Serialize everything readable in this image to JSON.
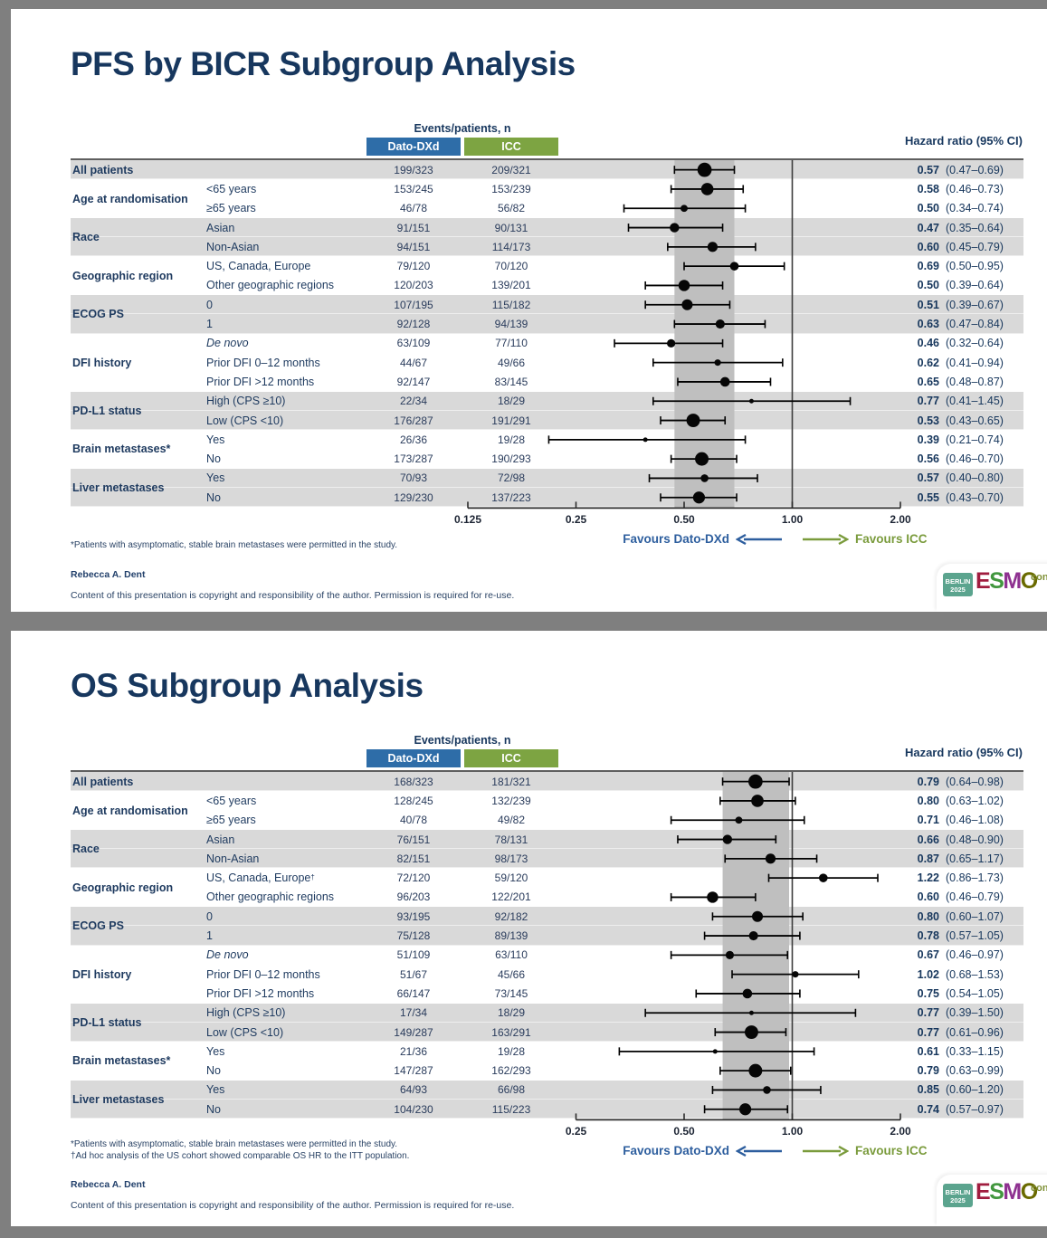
{
  "page": {
    "background_color": "#7f7f7f",
    "logo": {
      "badge": "BERLIN 2025",
      "badge_color": "#5ba48e",
      "brand_letters": [
        "E",
        "S",
        "M",
        "O"
      ],
      "brand_letter_colors": [
        "#a01d3f",
        "#42973f",
        "#8e3190",
        "#6a6a00"
      ],
      "suffix": "congr",
      "suffix_color": "#7d8f33"
    }
  },
  "chart_data": [
    {
      "type": "forest",
      "title": "PFS by BICR Subgroup Analysis",
      "events_header": "Events/patients, n",
      "columns": [
        "Dato-DXd",
        "ICC"
      ],
      "column_colors": [
        "#2e6da8",
        "#7da442"
      ],
      "hr_header": "Hazard ratio (95% CI)",
      "axis_scale": "log2",
      "axis_ticks": [
        "0.125",
        "0.25",
        "0.50",
        "1.00",
        "2.00"
      ],
      "reference_line": 1.0,
      "band": [
        0.47,
        0.69
      ],
      "favours_left": "Favours Dato-DXd",
      "favours_right": "Favours ICC",
      "favours_left_color": "#2d5e9e",
      "favours_right_color": "#7a9b3c",
      "groups": [
        {
          "label": "All patients",
          "shaded": true,
          "rows": [
            {
              "category": "",
              "dato": "199/323",
              "icc": "209/321",
              "hr": 0.57,
              "lo": 0.47,
              "hi": 0.69
            }
          ]
        },
        {
          "label": "Age at randomisation",
          "shaded": false,
          "rows": [
            {
              "category": "<65 years",
              "dato": "153/245",
              "icc": "153/239",
              "hr": 0.58,
              "lo": 0.46,
              "hi": 0.73
            },
            {
              "category": "≥65 years",
              "dato": "46/78",
              "icc": "56/82",
              "hr": 0.5,
              "lo": 0.34,
              "hi": 0.74
            }
          ]
        },
        {
          "label": "Race",
          "shaded": true,
          "rows": [
            {
              "category": "Asian",
              "dato": "91/151",
              "icc": "90/131",
              "hr": 0.47,
              "lo": 0.35,
              "hi": 0.64
            },
            {
              "category": "Non-Asian",
              "dato": "94/151",
              "icc": "114/173",
              "hr": 0.6,
              "lo": 0.45,
              "hi": 0.79
            }
          ]
        },
        {
          "label": "Geographic region",
          "shaded": false,
          "rows": [
            {
              "category": "US, Canada, Europe",
              "dato": "79/120",
              "icc": "70/120",
              "hr": 0.69,
              "lo": 0.5,
              "hi": 0.95
            },
            {
              "category": "Other geographic regions",
              "dato": "120/203",
              "icc": "139/201",
              "hr": 0.5,
              "lo": 0.39,
              "hi": 0.64
            }
          ]
        },
        {
          "label": "ECOG PS",
          "shaded": true,
          "rows": [
            {
              "category": "0",
              "dato": "107/195",
              "icc": "115/182",
              "hr": 0.51,
              "lo": 0.39,
              "hi": 0.67
            },
            {
              "category": "1",
              "dato": "92/128",
              "icc": "94/139",
              "hr": 0.63,
              "lo": 0.47,
              "hi": 0.84
            }
          ]
        },
        {
          "label": "DFI history",
          "shaded": false,
          "rows": [
            {
              "category": "De novo",
              "italic": true,
              "dato": "63/109",
              "icc": "77/110",
              "hr": 0.46,
              "lo": 0.32,
              "hi": 0.64
            },
            {
              "category": "Prior DFI 0–12 months",
              "dato": "44/67",
              "icc": "49/66",
              "hr": 0.62,
              "lo": 0.41,
              "hi": 0.94
            },
            {
              "category": "Prior DFI >12 months",
              "dato": "92/147",
              "icc": "83/145",
              "hr": 0.65,
              "lo": 0.48,
              "hi": 0.87
            }
          ]
        },
        {
          "label": "PD-L1 status",
          "shaded": true,
          "rows": [
            {
              "category": "High (CPS ≥10)",
              "dato": "22/34",
              "icc": "18/29",
              "hr": 0.77,
              "lo": 0.41,
              "hi": 1.45
            },
            {
              "category": "Low (CPS <10)",
              "dato": "176/287",
              "icc": "191/291",
              "hr": 0.53,
              "lo": 0.43,
              "hi": 0.65
            }
          ]
        },
        {
          "label": "Brain metastases*",
          "shaded": false,
          "rows": [
            {
              "category": "Yes",
              "dato": "26/36",
              "icc": "19/28",
              "hr": 0.39,
              "lo": 0.21,
              "hi": 0.74
            },
            {
              "category": "No",
              "dato": "173/287",
              "icc": "190/293",
              "hr": 0.56,
              "lo": 0.46,
              "hi": 0.7
            }
          ]
        },
        {
          "label": "Liver metastases",
          "shaded": true,
          "rows": [
            {
              "category": "Yes",
              "dato": "70/93",
              "icc": "72/98",
              "hr": 0.57,
              "lo": 0.4,
              "hi": 0.8
            },
            {
              "category": "No",
              "dato": "129/230",
              "icc": "137/223",
              "hr": 0.55,
              "lo": 0.43,
              "hi": 0.7
            }
          ]
        }
      ],
      "footnotes": [
        "*Patients with asymptomatic, stable brain metastases were permitted in the study."
      ],
      "author": "Rebecca A. Dent",
      "copyright": "Content of this presentation is copyright and responsibility of the author. Permission is required for re-use."
    },
    {
      "type": "forest",
      "title": "OS Subgroup Analysis",
      "events_header": "Events/patients, n",
      "columns": [
        "Dato-DXd",
        "ICC"
      ],
      "column_colors": [
        "#2e6da8",
        "#7da442"
      ],
      "hr_header": "Hazard ratio (95% CI)",
      "axis_scale": "log2",
      "axis_ticks": [
        "0.25",
        "0.50",
        "1.00",
        "2.00"
      ],
      "reference_line": 1.0,
      "band": [
        0.64,
        0.98
      ],
      "favours_left": "Favours Dato-DXd",
      "favours_right": "Favours ICC",
      "favours_left_color": "#2d5e9e",
      "favours_right_color": "#7a9b3c",
      "groups": [
        {
          "label": "All patients",
          "shaded": true,
          "rows": [
            {
              "category": "",
              "dato": "168/323",
              "icc": "181/321",
              "hr": 0.79,
              "lo": 0.64,
              "hi": 0.98
            }
          ]
        },
        {
          "label": "Age at randomisation",
          "shaded": false,
          "rows": [
            {
              "category": "<65 years",
              "dato": "128/245",
              "icc": "132/239",
              "hr": 0.8,
              "lo": 0.63,
              "hi": 1.02
            },
            {
              "category": "≥65 years",
              "dato": "40/78",
              "icc": "49/82",
              "hr": 0.71,
              "lo": 0.46,
              "hi": 1.08
            }
          ]
        },
        {
          "label": "Race",
          "shaded": true,
          "rows": [
            {
              "category": "Asian",
              "dato": "76/151",
              "icc": "78/131",
              "hr": 0.66,
              "lo": 0.48,
              "hi": 0.9
            },
            {
              "category": "Non-Asian",
              "dato": "82/151",
              "icc": "98/173",
              "hr": 0.87,
              "lo": 0.65,
              "hi": 1.17
            }
          ]
        },
        {
          "label": "Geographic region",
          "shaded": false,
          "rows": [
            {
              "category": "US, Canada, Europe",
              "sup": "†",
              "dato": "72/120",
              "icc": "59/120",
              "hr": 1.22,
              "lo": 0.86,
              "hi": 1.73
            },
            {
              "category": "Other geographic regions",
              "dato": "96/203",
              "icc": "122/201",
              "hr": 0.6,
              "lo": 0.46,
              "hi": 0.79
            }
          ]
        },
        {
          "label": "ECOG PS",
          "shaded": true,
          "rows": [
            {
              "category": "0",
              "dato": "93/195",
              "icc": "92/182",
              "hr": 0.8,
              "lo": 0.6,
              "hi": 1.07
            },
            {
              "category": "1",
              "dato": "75/128",
              "icc": "89/139",
              "hr": 0.78,
              "lo": 0.57,
              "hi": 1.05
            }
          ]
        },
        {
          "label": "DFI history",
          "shaded": false,
          "rows": [
            {
              "category": "De novo",
              "italic": true,
              "dato": "51/109",
              "icc": "63/110",
              "hr": 0.67,
              "lo": 0.46,
              "hi": 0.97
            },
            {
              "category": "Prior DFI 0–12 months",
              "dato": "51/67",
              "icc": "45/66",
              "hr": 1.02,
              "lo": 0.68,
              "hi": 1.53
            },
            {
              "category": "Prior DFI >12 months",
              "dato": "66/147",
              "icc": "73/145",
              "hr": 0.75,
              "lo": 0.54,
              "hi": 1.05
            }
          ]
        },
        {
          "label": "PD-L1 status",
          "shaded": true,
          "rows": [
            {
              "category": "High (CPS ≥10)",
              "dato": "17/34",
              "icc": "18/29",
              "hr": 0.77,
              "lo": 0.39,
              "hi": 1.5
            },
            {
              "category": "Low (CPS <10)",
              "dato": "149/287",
              "icc": "163/291",
              "hr": 0.77,
              "lo": 0.61,
              "hi": 0.96
            }
          ]
        },
        {
          "label": "Brain metastases*",
          "shaded": false,
          "rows": [
            {
              "category": "Yes",
              "dato": "21/36",
              "icc": "19/28",
              "hr": 0.61,
              "lo": 0.33,
              "hi": 1.15
            },
            {
              "category": "No",
              "dato": "147/287",
              "icc": "162/293",
              "hr": 0.79,
              "lo": 0.63,
              "hi": 0.99
            }
          ]
        },
        {
          "label": "Liver metastases",
          "shaded": true,
          "rows": [
            {
              "category": "Yes",
              "dato": "64/93",
              "icc": "66/98",
              "hr": 0.85,
              "lo": 0.6,
              "hi": 1.2
            },
            {
              "category": "No",
              "dato": "104/230",
              "icc": "115/223",
              "hr": 0.74,
              "lo": 0.57,
              "hi": 0.97
            }
          ]
        }
      ],
      "footnotes": [
        "*Patients with asymptomatic, stable brain metastases were permitted in the study.",
        "†Ad hoc analysis of the US cohort showed comparable OS HR to the ITT population."
      ],
      "author": "Rebecca A. Dent",
      "copyright": "Content of this presentation is copyright and responsibility of the author. Permission is required for re-use."
    }
  ]
}
